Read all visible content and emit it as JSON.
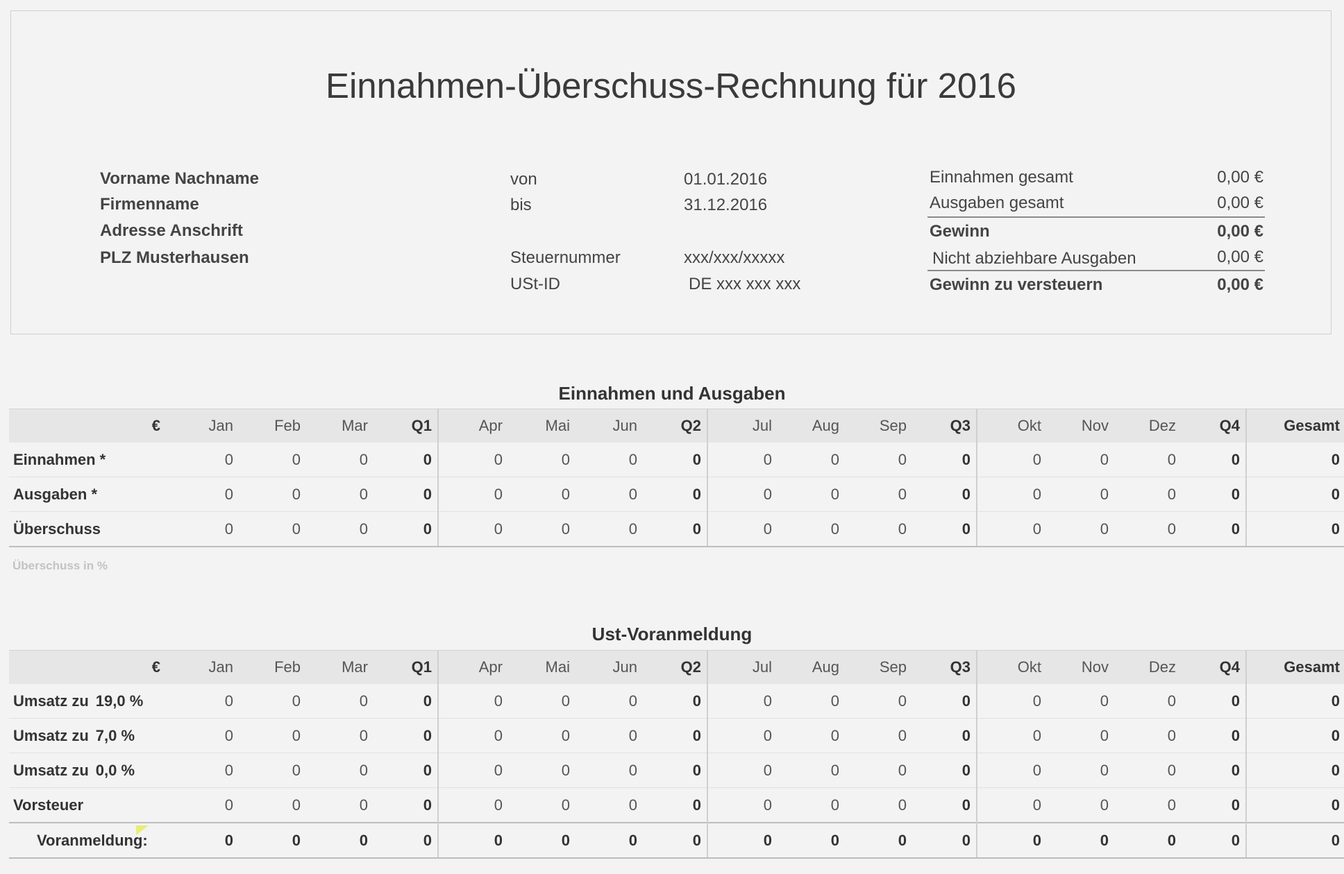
{
  "header": {
    "title": "Einnahmen-Überschuss-Rechnung für 2016",
    "name": "Vorname Nachname",
    "company": "Firmenname",
    "address": "Adresse Anschrift",
    "city": "PLZ Musterhausen",
    "from_label": "von",
    "from_value": "01.01.2016",
    "to_label": "bis",
    "to_value": "31.12.2016",
    "tax_no_label": "Steuernummer",
    "tax_no_value": "xxx/xxx/xxxxx",
    "vat_id_label": "USt-ID",
    "vat_id_value": "DE xxx xxx xxx"
  },
  "summary": [
    {
      "label": "Einnahmen gesamt",
      "value": "0,00 €"
    },
    {
      "label": "Ausgaben gesamt",
      "value": "0,00 €"
    },
    {
      "label": "Gewinn",
      "value": "0,00 €"
    },
    {
      "label": "Nicht abziehbare Ausgaben",
      "value": "0,00 €"
    },
    {
      "label": "Gewinn zu versteuern",
      "value": "0,00 €"
    }
  ],
  "columns": [
    "€",
    "Jan",
    "Feb",
    "Mar",
    "Q1",
    "Apr",
    "Mai",
    "Jun",
    "Q2",
    "Jul",
    "Aug",
    "Sep",
    "Q3",
    "Okt",
    "Nov",
    "Dez",
    "Q4",
    "Gesamt"
  ],
  "income_expense": {
    "title": "Einnahmen und Ausgaben",
    "rows": [
      {
        "label": "Einnahmen *",
        "values": [
          "0",
          "0",
          "0",
          "0",
          "0",
          "0",
          "0",
          "0",
          "0",
          "0",
          "0",
          "0",
          "0",
          "0",
          "0",
          "0",
          "0"
        ]
      },
      {
        "label": "Ausgaben *",
        "values": [
          "0",
          "0",
          "0",
          "0",
          "0",
          "0",
          "0",
          "0",
          "0",
          "0",
          "0",
          "0",
          "0",
          "0",
          "0",
          "0",
          "0"
        ]
      },
      {
        "label": "Überschuss",
        "values": [
          "0",
          "0",
          "0",
          "0",
          "0",
          "0",
          "0",
          "0",
          "0",
          "0",
          "0",
          "0",
          "0",
          "0",
          "0",
          "0",
          "0"
        ]
      }
    ],
    "note": "Überschuss in %"
  },
  "vat": {
    "title": "Ust-Voranmeldung",
    "rows": [
      {
        "label": "Umsatz zu",
        "rate": "19,0 %",
        "values": [
          "0",
          "0",
          "0",
          "0",
          "0",
          "0",
          "0",
          "0",
          "0",
          "0",
          "0",
          "0",
          "0",
          "0",
          "0",
          "0",
          "0"
        ]
      },
      {
        "label": "Umsatz zu",
        "rate": "7,0 %",
        "values": [
          "0",
          "0",
          "0",
          "0",
          "0",
          "0",
          "0",
          "0",
          "0",
          "0",
          "0",
          "0",
          "0",
          "0",
          "0",
          "0",
          "0"
        ]
      },
      {
        "label": "Umsatz zu",
        "rate": "0,0 %",
        "values": [
          "0",
          "0",
          "0",
          "0",
          "0",
          "0",
          "0",
          "0",
          "0",
          "0",
          "0",
          "0",
          "0",
          "0",
          "0",
          "0",
          "0"
        ]
      },
      {
        "label": "Vorsteuer",
        "rate": "",
        "values": [
          "0",
          "0",
          "0",
          "0",
          "0",
          "0",
          "0",
          "0",
          "0",
          "0",
          "0",
          "0",
          "0",
          "0",
          "0",
          "0",
          "0"
        ]
      }
    ],
    "sum_row": {
      "label": "Voranmeldung:",
      "values": [
        "0",
        "0",
        "0",
        "0",
        "0",
        "0",
        "0",
        "0",
        "0",
        "0",
        "0",
        "0",
        "0",
        "0",
        "0",
        "0",
        "0"
      ]
    }
  }
}
